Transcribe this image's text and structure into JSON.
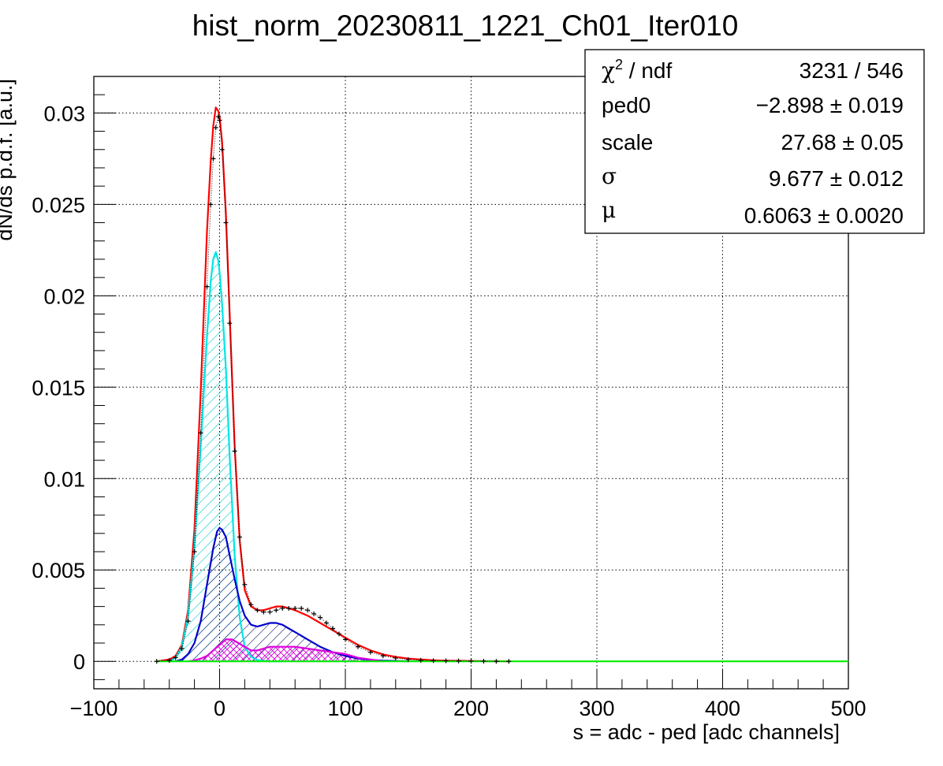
{
  "chart_data": {
    "type": "line",
    "title": "hist_norm_20230811_1221_Ch01_Iter010",
    "xlabel": "s = adc - ped [adc channels]",
    "ylabel": "dN/ds p.d.f. [a.u.]",
    "xlim": [
      -100,
      500
    ],
    "ylim": [
      -0.0015,
      0.032
    ],
    "grid": true,
    "x_ticks": [
      -100,
      0,
      100,
      200,
      300,
      400,
      500
    ],
    "x_tick_labels": [
      "−100",
      "0",
      "100",
      "200",
      "300",
      "400",
      "500"
    ],
    "y_ticks": [
      0,
      0.005,
      0.01,
      0.015,
      0.02,
      0.025,
      0.03
    ],
    "y_tick_labels": [
      "0",
      "0.005",
      "0.01",
      "0.015",
      "0.02",
      "0.025",
      "0.03"
    ],
    "stats_box": {
      "position": "top-right",
      "rows": [
        {
          "name_sym": "χ",
          "name_sup": "2",
          "name_rest": " / ndf",
          "value": "3231 / 546"
        },
        {
          "name": "ped0",
          "value": "−2.898 ± 0.019"
        },
        {
          "name": "scale",
          "value": "27.68 ± 0.05"
        },
        {
          "name_sym": "σ",
          "value": "9.677 ± 0.012"
        },
        {
          "name_sym": "μ",
          "value": "0.6063 ± 0.0020"
        }
      ]
    },
    "series": [
      {
        "color": "#000000",
        "style": "histogram-points",
        "x": [
          -50,
          -40,
          -35,
          -30,
          -25,
          -20,
          -15,
          -10,
          -7,
          -5,
          -3,
          -1,
          0,
          2,
          5,
          8,
          12,
          16,
          20,
          25,
          30,
          35,
          40,
          45,
          50,
          55,
          60,
          65,
          70,
          75,
          80,
          85,
          90,
          95,
          100,
          110,
          120,
          130,
          140,
          150,
          160,
          170,
          180,
          190,
          200,
          210,
          220,
          230
        ],
        "y": [
          0.0,
          5e-05,
          0.0002,
          0.0007,
          0.0022,
          0.006,
          0.0125,
          0.0205,
          0.025,
          0.0275,
          0.0292,
          0.0298,
          0.0296,
          0.028,
          0.024,
          0.0185,
          0.0115,
          0.0068,
          0.0042,
          0.0031,
          0.0028,
          0.0027,
          0.0027,
          0.0028,
          0.0029,
          0.0029,
          0.0029,
          0.0029,
          0.0028,
          0.0026,
          0.0024,
          0.0021,
          0.0018,
          0.0015,
          0.0012,
          0.0008,
          0.0005,
          0.0003,
          0.00018,
          0.0001,
          6e-05,
          4e-05,
          3e-05,
          2e-05,
          1e-05,
          1e-05,
          0.0,
          0.0
        ]
      },
      {
        "color": "#ff0000",
        "style": "line",
        "x": [
          -50,
          -40,
          -35,
          -30,
          -25,
          -20,
          -15,
          -10,
          -7,
          -5,
          -3,
          -1,
          0,
          2,
          5,
          8,
          12,
          16,
          20,
          25,
          30,
          35,
          40,
          45,
          50,
          55,
          60,
          70,
          80,
          90,
          100,
          110,
          120,
          130,
          140,
          150,
          160,
          170,
          180,
          190,
          200,
          210,
          220,
          230
        ],
        "y": [
          0.0,
          0.0001,
          0.0003,
          0.0009,
          0.0028,
          0.0072,
          0.0148,
          0.0235,
          0.0274,
          0.0293,
          0.0303,
          0.0301,
          0.0298,
          0.0284,
          0.0245,
          0.019,
          0.0118,
          0.0066,
          0.0039,
          0.003,
          0.0028,
          0.0028,
          0.0029,
          0.003,
          0.003,
          0.0029,
          0.0028,
          0.0025,
          0.0021,
          0.0017,
          0.0013,
          0.0009,
          0.0006,
          0.00038,
          0.00024,
          0.00015,
          0.0001,
          6e-05,
          4e-05,
          3e-05,
          2e-05,
          1e-05,
          1e-05,
          0.0
        ]
      },
      {
        "color": "#00e5e5",
        "style": "line-hatched",
        "x": [
          -40,
          -35,
          -30,
          -25,
          -20,
          -15,
          -10,
          -7,
          -5,
          -3,
          -1,
          0,
          2,
          5,
          8,
          12,
          16,
          20,
          25,
          30,
          35,
          40,
          50
        ],
        "y": [
          0.0,
          0.0002,
          0.0008,
          0.0025,
          0.0062,
          0.0118,
          0.0178,
          0.0208,
          0.022,
          0.0224,
          0.0219,
          0.0213,
          0.0195,
          0.016,
          0.0112,
          0.0058,
          0.0024,
          0.0008,
          0.00025,
          8e-05,
          2e-05,
          0.0,
          0.0
        ]
      },
      {
        "color": "#0000cc",
        "style": "line-hatched",
        "x": [
          -35,
          -30,
          -25,
          -20,
          -15,
          -10,
          -5,
          -2,
          0,
          2,
          5,
          8,
          12,
          16,
          20,
          25,
          30,
          35,
          40,
          45,
          50,
          55,
          60,
          70,
          80,
          90,
          100,
          110,
          120,
          130,
          140,
          150
        ],
        "y": [
          0.0,
          0.0001,
          0.0004,
          0.001,
          0.0022,
          0.0042,
          0.0062,
          0.0071,
          0.0073,
          0.0072,
          0.0068,
          0.0058,
          0.0045,
          0.0033,
          0.0025,
          0.002,
          0.0019,
          0.002,
          0.0021,
          0.0021,
          0.002,
          0.0018,
          0.0016,
          0.0012,
          0.0008,
          0.0005,
          0.0003,
          0.00016,
          8e-05,
          4e-05,
          2e-05,
          0.0
        ]
      },
      {
        "color": "#dd00dd",
        "style": "line-crosshatched",
        "x": [
          -25,
          -20,
          -15,
          -10,
          -5,
          0,
          5,
          10,
          15,
          20,
          25,
          30,
          35,
          40,
          45,
          50,
          55,
          60,
          70,
          80,
          90,
          100,
          110,
          120,
          130
        ],
        "y": [
          0.0,
          5e-05,
          0.00015,
          0.0003,
          0.0006,
          0.0009,
          0.0012,
          0.0012,
          0.001,
          0.0008,
          0.0006,
          0.0006,
          0.0007,
          0.0008,
          0.0008,
          0.0008,
          0.0008,
          0.0008,
          0.0007,
          0.0006,
          0.0005,
          0.0004,
          0.0002,
          0.0001,
          0.0
        ]
      },
      {
        "color": "#00ee00",
        "style": "line",
        "x": [
          -50,
          500
        ],
        "y": [
          0.0,
          0.0
        ]
      }
    ]
  }
}
